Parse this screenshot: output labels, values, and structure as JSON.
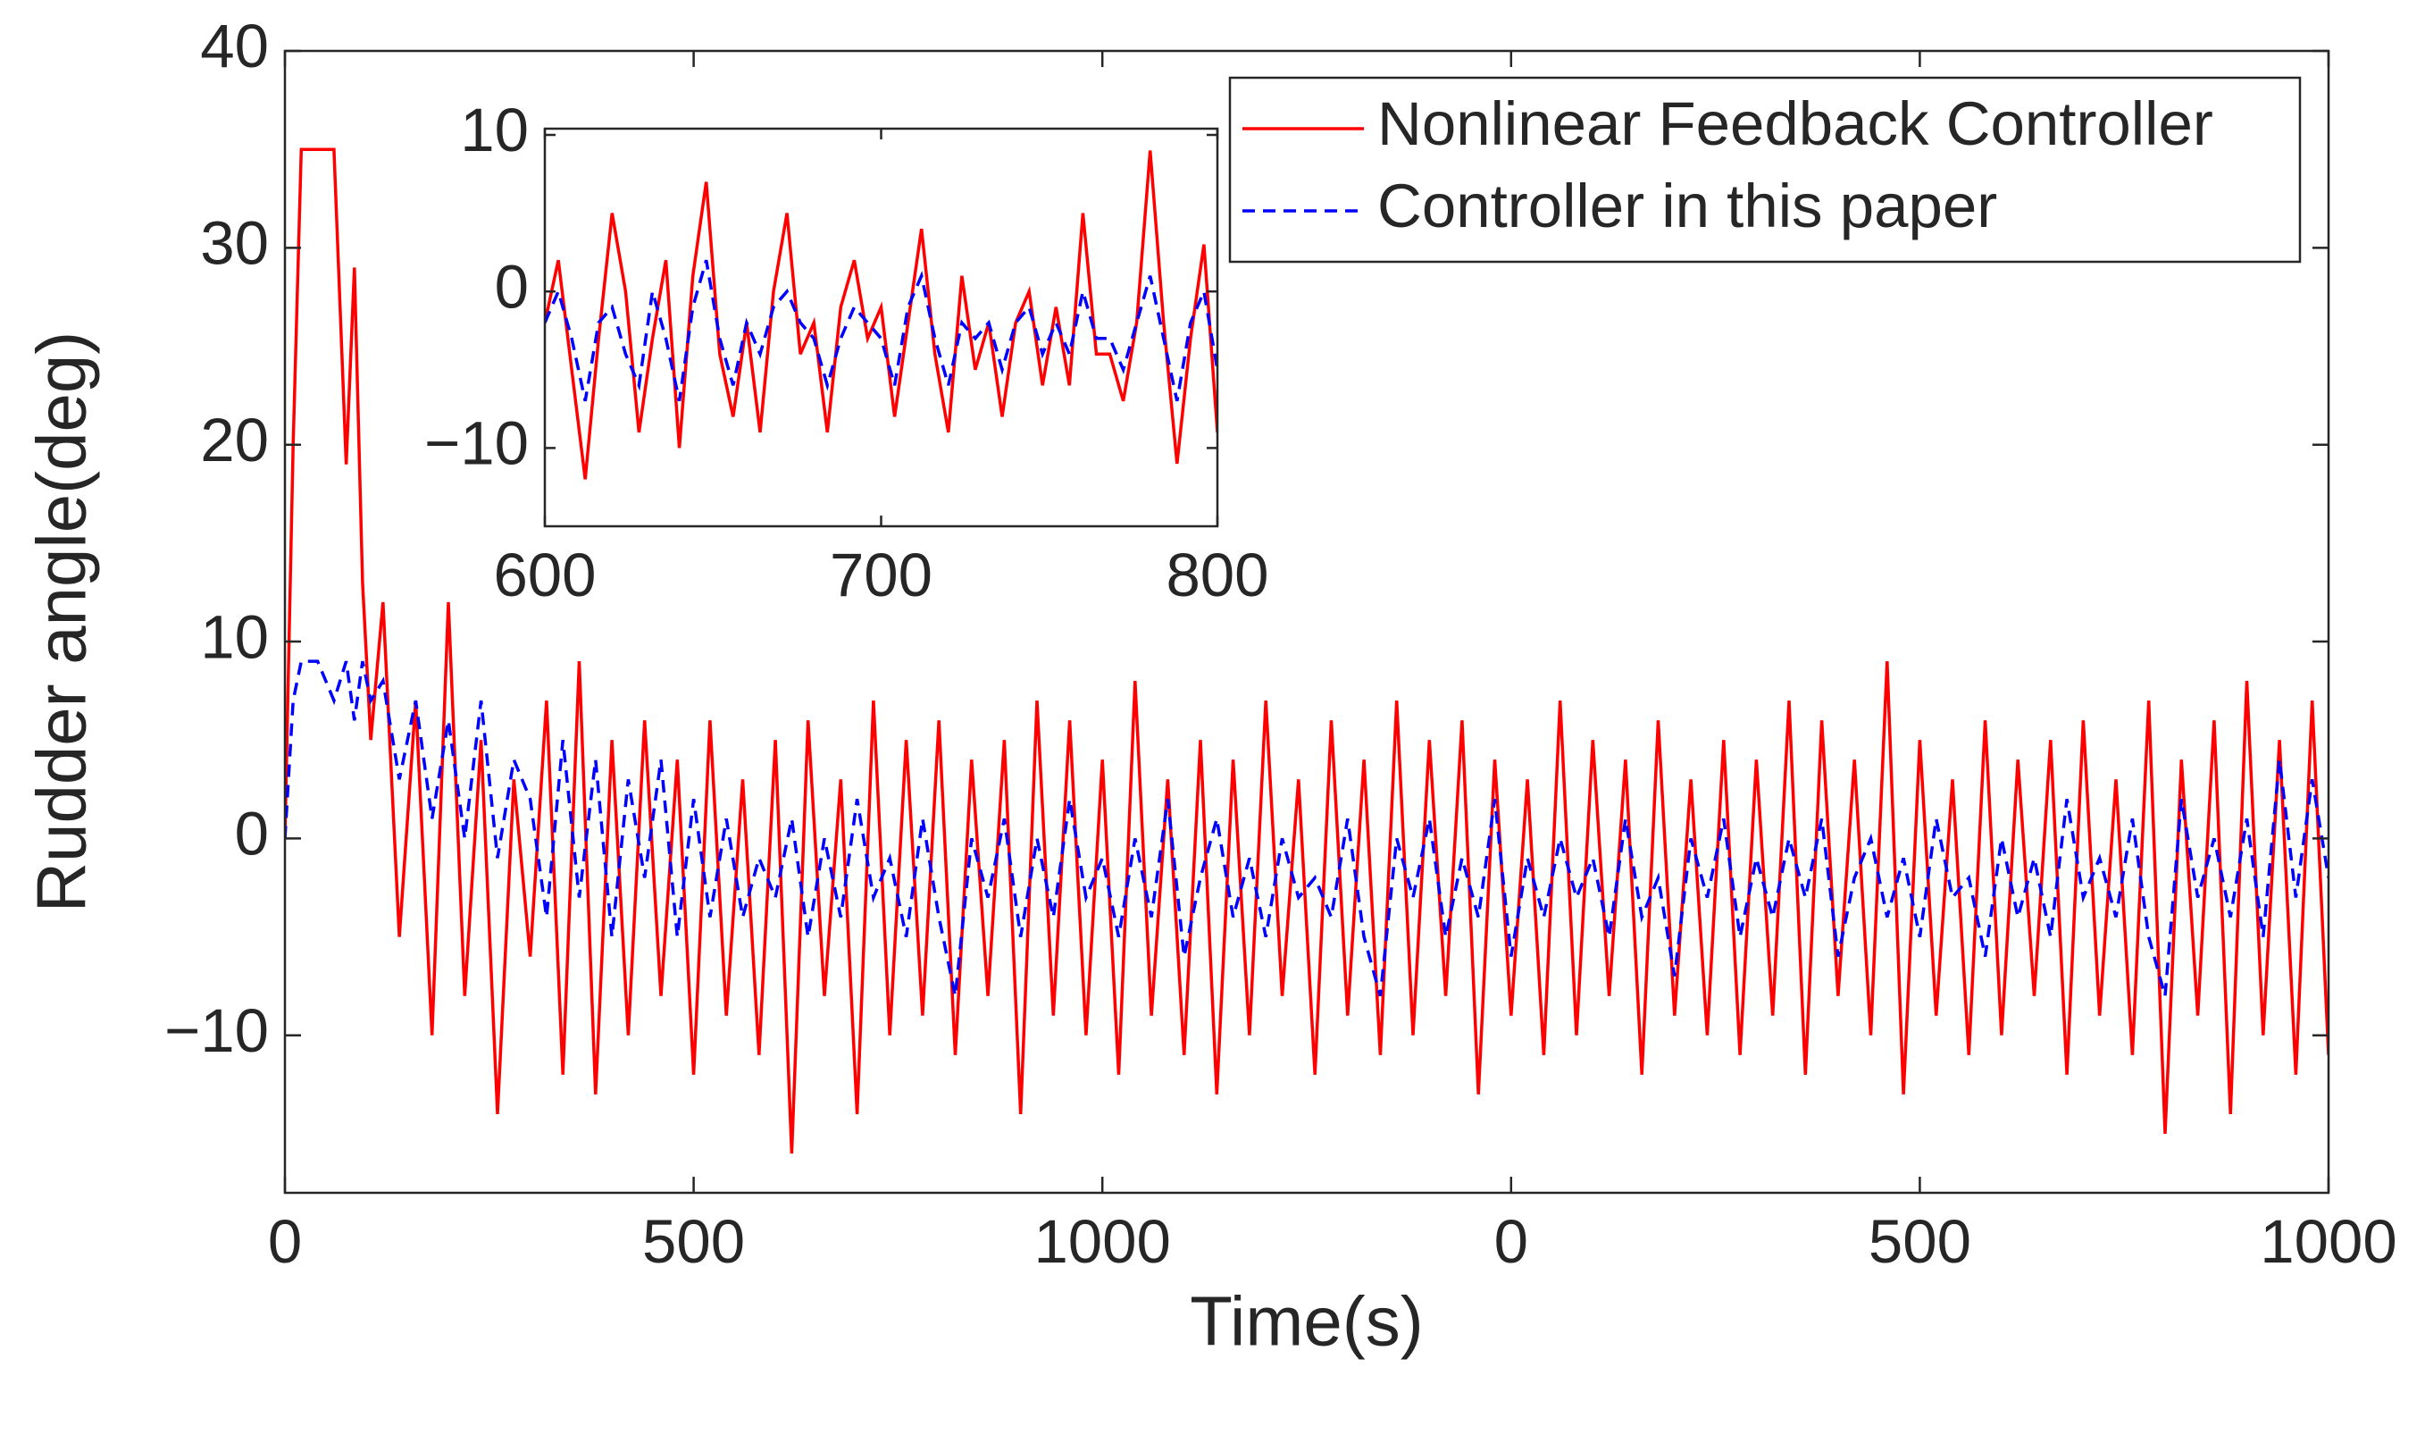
{
  "chart_data": [
    {
      "type": "line",
      "xlabel": "Time(s)",
      "ylabel": "Rudder angle(deg)",
      "x": [
        0,
        10,
        20,
        40,
        60,
        75,
        85,
        95,
        105,
        120,
        140,
        160,
        180,
        200,
        220,
        240,
        260,
        280,
        300,
        320,
        340,
        360,
        380,
        400,
        420,
        440,
        460,
        480,
        500,
        520,
        540,
        560,
        580,
        600,
        620,
        640,
        660,
        680,
        700,
        720,
        740,
        760,
        780,
        800,
        820,
        840,
        860,
        880,
        900,
        920,
        940,
        960,
        980,
        1000,
        1020,
        1040,
        1060,
        1080,
        1100,
        1120,
        1140,
        1160,
        1180,
        1200,
        1220,
        1240,
        1260,
        1280,
        1300,
        1320,
        1340,
        1360,
        1380,
        1400,
        1420,
        1440,
        1460,
        1480,
        1500,
        1520,
        1540,
        1560,
        1580,
        1600,
        1620,
        1640,
        1660,
        1680,
        1700,
        1720,
        1740,
        1760,
        1780,
        1800,
        1820,
        1840,
        1860,
        1880,
        1900,
        1920,
        1940,
        1960,
        1980,
        2000,
        2020,
        2040,
        2060,
        2080,
        2100,
        2120,
        2140,
        2160,
        2180,
        2200,
        2220,
        2240,
        2260,
        2280,
        2300,
        2320,
        2340,
        2360,
        2380,
        2400,
        2420,
        2440,
        2460,
        2480,
        2500
      ],
      "series": [
        {
          "name": "Nonlinear Feedback Controller",
          "color": "#ff0000",
          "style": "solid",
          "values": [
            0,
            20,
            35,
            35,
            35,
            19,
            29,
            13,
            5,
            12,
            -5,
            7,
            -10,
            12,
            -8,
            5,
            -14,
            3,
            -6,
            7,
            -12,
            9,
            -13,
            5,
            -10,
            6,
            -8,
            4,
            -12,
            6,
            -9,
            3,
            -11,
            5,
            -16,
            6,
            -8,
            3,
            -14,
            7,
            -10,
            5,
            -9,
            6,
            -11,
            4,
            -8,
            5,
            -14,
            7,
            -9,
            6,
            -10,
            4,
            -12,
            8,
            -9,
            3,
            -11,
            5,
            -13,
            4,
            -10,
            7,
            -8,
            3,
            -12,
            6,
            -9,
            4,
            -11,
            7,
            -10,
            5,
            -8,
            6,
            -13,
            4,
            -9,
            3,
            -11,
            7,
            -10,
            5,
            -8,
            4,
            -12,
            6,
            -9,
            3,
            -10,
            5,
            -11,
            4,
            -9,
            7,
            -12,
            6,
            -8,
            4,
            -10,
            9,
            -13,
            5,
            -9,
            3,
            -11,
            6,
            -10,
            4,
            -8,
            5,
            -12,
            6,
            -9,
            3,
            -11,
            7,
            -15,
            4,
            -9,
            6,
            -14,
            8,
            -10,
            5,
            -12,
            7,
            -11
          ]
        },
        {
          "name": "Controller in this paper",
          "color": "#0000ff",
          "style": "dashed",
          "values": [
            0,
            7,
            9,
            9,
            7,
            9,
            6,
            9,
            7,
            8,
            3,
            7,
            1,
            6,
            0,
            7,
            -1,
            4,
            2,
            -4,
            5,
            -3,
            4,
            -5,
            3,
            -2,
            4,
            -5,
            2,
            -4,
            1,
            -4,
            -1,
            -3,
            1,
            -5,
            0,
            -4,
            2,
            -3,
            -1,
            -5,
            1,
            -4,
            -8,
            0,
            -3,
            1,
            -5,
            0,
            -4,
            2,
            -3,
            -1,
            -5,
            0,
            -4,
            2,
            -6,
            -2,
            1,
            -4,
            -1,
            -5,
            0,
            -3,
            -2,
            -4,
            1,
            -5,
            -8,
            0,
            -3,
            1,
            -5,
            -1,
            -4,
            2,
            -6,
            -1,
            -4,
            0,
            -3,
            -1,
            -5,
            1,
            -4,
            -2,
            -7,
            0,
            -3,
            1,
            -5,
            -1,
            -4,
            0,
            -3,
            1,
            -6,
            -2,
            0,
            -4,
            -1,
            -5,
            1,
            -3,
            -2,
            -6,
            0,
            -4,
            -1,
            -5,
            2,
            -3,
            -1,
            -4,
            1,
            -5,
            -8,
            2,
            -3,
            0,
            -4,
            1,
            -5,
            4,
            -3,
            3,
            -2
          ]
        }
      ],
      "xlim": [
        0,
        2500
      ],
      "xticks": [
        0,
        500,
        1000,
        {
          "value": 1500,
          "label": "0"
        },
        {
          "value": 2000,
          "label": "500"
        },
        {
          "value": 2500,
          "label": "1000"
        }
      ],
      "ylim": [
        -18,
        40
      ],
      "yticks": [
        {
          "value": -10,
          "label": "−10"
        },
        0,
        10,
        20,
        30,
        40
      ],
      "legend": "upper right"
    },
    {
      "type": "line",
      "x": [
        600,
        604,
        608,
        612,
        616,
        620,
        624,
        628,
        632,
        636,
        640,
        644,
        648,
        652,
        656,
        660,
        664,
        668,
        672,
        676,
        680,
        684,
        688,
        692,
        696,
        700,
        704,
        708,
        712,
        716,
        720,
        724,
        728,
        732,
        736,
        740,
        744,
        748,
        752,
        756,
        760,
        764,
        768,
        772,
        776,
        780,
        784,
        788,
        792,
        796,
        800
      ],
      "series": [
        {
          "color": "#ff0000",
          "style": "solid",
          "values": [
            -2,
            2,
            -5,
            -12,
            -3,
            5,
            0,
            -9,
            -3,
            2,
            -10,
            1,
            7,
            -4,
            -8,
            -2,
            -9,
            0,
            5,
            -4,
            -2,
            -9,
            -1,
            2,
            -3,
            -1,
            -8,
            -2,
            4,
            -4,
            -9,
            1,
            -5,
            -2,
            -8,
            -2,
            0,
            -6,
            -1,
            -6,
            5,
            -4,
            -4,
            -7,
            -2,
            9,
            -2,
            -11,
            -3,
            3,
            -9
          ]
        },
        {
          "color": "#0000ff",
          "style": "dashed",
          "values": [
            -2,
            0,
            -3,
            -7,
            -2,
            -1,
            -4,
            -6,
            0,
            -3,
            -7,
            -1,
            2,
            -3,
            -6,
            -2,
            -4,
            -1,
            0,
            -2,
            -3,
            -6,
            -3,
            -1,
            -2,
            -3,
            -6,
            -1,
            1,
            -3,
            -6,
            -2,
            -3,
            -2,
            -5,
            -2,
            -1,
            -4,
            -2,
            -4,
            0,
            -3,
            -3,
            -5,
            -2,
            1,
            -3,
            -7,
            -2,
            0,
            -5
          ]
        }
      ],
      "xlim": [
        600,
        800
      ],
      "xticks": [
        600,
        700,
        800
      ],
      "ylim": [
        -15,
        10.4
      ],
      "yticks": [
        {
          "value": -10,
          "label": "−10"
        },
        0,
        10
      ]
    }
  ]
}
